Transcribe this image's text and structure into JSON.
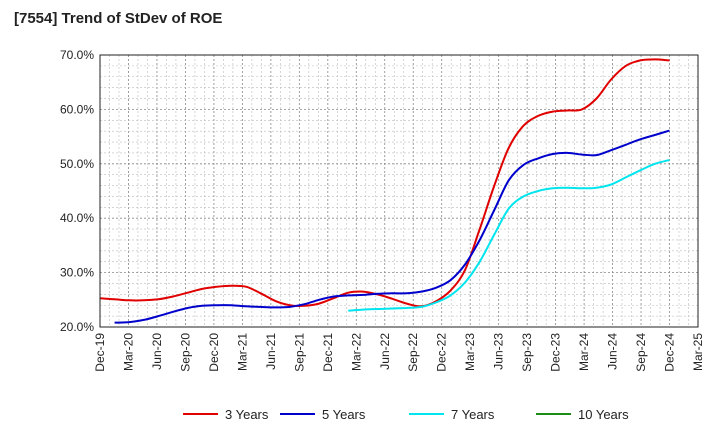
{
  "title": "[7554]  Trend of StDev of ROE",
  "chart_data": {
    "type": "line",
    "title": "[7554]  Trend of StDev of ROE",
    "x_ticks": [
      "Dec-19",
      "Mar-20",
      "Jun-20",
      "Sep-20",
      "Dec-20",
      "Mar-21",
      "Jun-21",
      "Sep-21",
      "Dec-21",
      "Mar-22",
      "Jun-22",
      "Sep-22",
      "Dec-22",
      "Mar-23",
      "Jun-23",
      "Sep-23",
      "Dec-23",
      "Mar-24",
      "Jun-24",
      "Sep-24",
      "Dec-24",
      "Mar-25"
    ],
    "y_ticks": [
      "20.0%",
      "30.0%",
      "40.0%",
      "50.0%",
      "60.0%",
      "70.0%"
    ],
    "ylim": [
      20,
      70
    ],
    "grid": true,
    "legend_position": "bottom",
    "series": [
      {
        "name": "3 Years",
        "color": "#e00000",
        "values": [
          25.3,
          25.1,
          24.9,
          24.9,
          25.1,
          25.6,
          26.3,
          27.0,
          27.4,
          27.6,
          27.4,
          26.2,
          24.8,
          24.0,
          23.9,
          24.3,
          25.3,
          26.3,
          26.5,
          26.0,
          25.2,
          24.3,
          23.8,
          24.7,
          26.7,
          30.5,
          38.0,
          46.0,
          53.0,
          57.0,
          58.8,
          59.6,
          59.8,
          60.0,
          62.0,
          65.5,
          68.0,
          69.0,
          69.2,
          69.0
        ]
      },
      {
        "name": "5 Years",
        "color": "#0000cc",
        "values": [
          null,
          20.8,
          20.9,
          21.3,
          22.0,
          22.8,
          23.5,
          23.9,
          24.0,
          24.0,
          23.8,
          23.7,
          23.6,
          23.7,
          24.2,
          25.0,
          25.6,
          25.8,
          25.9,
          26.1,
          26.2,
          26.2,
          26.5,
          27.2,
          28.6,
          31.5,
          36.0,
          41.5,
          47.0,
          49.8,
          51.0,
          51.8,
          52.0,
          51.7,
          51.6,
          52.5,
          53.5,
          54.5,
          55.3,
          56.1
        ]
      },
      {
        "name": "7 Years",
        "color": "#00e5ee",
        "values": [
          null,
          null,
          null,
          null,
          null,
          null,
          null,
          null,
          null,
          null,
          null,
          null,
          null,
          null,
          null,
          null,
          null,
          23.0,
          23.2,
          23.3,
          23.4,
          23.5,
          23.7,
          24.5,
          25.8,
          28.2,
          32.0,
          37.0,
          41.8,
          44.0,
          45.0,
          45.5,
          45.6,
          45.5,
          45.6,
          46.2,
          47.5,
          48.8,
          50.0,
          50.7
        ]
      },
      {
        "name": "10 Years",
        "color": "#1a8c1a",
        "values": []
      }
    ]
  }
}
